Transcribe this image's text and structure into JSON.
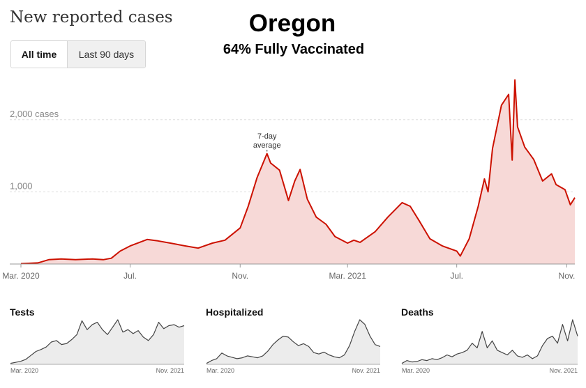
{
  "header": {
    "title": "New reported cases",
    "toggle": {
      "all_time": "All time",
      "last_90": "Last 90 days"
    }
  },
  "overlay": {
    "state": "Oregon",
    "vaccination": "64% Fully Vaccinated"
  },
  "colors": {
    "line": "#cc1100",
    "fill": "#f7d9d7",
    "grid": "#dddddd",
    "mini_line": "#444444",
    "mini_fill": "#ececec"
  },
  "chart_data": [
    {
      "type": "area",
      "title": "New reported cases",
      "annotation": "7-day average",
      "ylim": [
        0,
        2500
      ],
      "y_ticks": [
        {
          "value": 1000,
          "label": "1,000"
        },
        {
          "value": 2000,
          "label": "2,000 cases"
        }
      ],
      "x_ticks": [
        {
          "x": "2020-03-01",
          "label": "Mar. 2020"
        },
        {
          "x": "2020-07-01",
          "label": "Jul."
        },
        {
          "x": "2020-11-01",
          "label": "Nov."
        },
        {
          "x": "2021-03-01",
          "label": "Mar. 2021"
        },
        {
          "x": "2021-07-01",
          "label": "Jul."
        },
        {
          "x": "2021-11-01",
          "label": "Nov."
        }
      ],
      "series": [
        {
          "points": [
            [
              "2020-03-01",
              5
            ],
            [
              "2020-03-20",
              15
            ],
            [
              "2020-04-01",
              60
            ],
            [
              "2020-04-15",
              70
            ],
            [
              "2020-05-01",
              60
            ],
            [
              "2020-05-20",
              70
            ],
            [
              "2020-06-01",
              60
            ],
            [
              "2020-06-10",
              80
            ],
            [
              "2020-06-20",
              180
            ],
            [
              "2020-07-01",
              250
            ],
            [
              "2020-07-20",
              340
            ],
            [
              "2020-08-01",
              320
            ],
            [
              "2020-08-15",
              290
            ],
            [
              "2020-09-01",
              250
            ],
            [
              "2020-09-15",
              220
            ],
            [
              "2020-10-01",
              290
            ],
            [
              "2020-10-15",
              330
            ],
            [
              "2020-11-01",
              500
            ],
            [
              "2020-11-10",
              800
            ],
            [
              "2020-11-20",
              1200
            ],
            [
              "2020-12-01",
              1530
            ],
            [
              "2020-12-05",
              1400
            ],
            [
              "2020-12-15",
              1300
            ],
            [
              "2020-12-25",
              880
            ],
            [
              "2021-01-01",
              1150
            ],
            [
              "2021-01-07",
              1310
            ],
            [
              "2021-01-15",
              900
            ],
            [
              "2021-01-25",
              650
            ],
            [
              "2021-02-05",
              550
            ],
            [
              "2021-02-15",
              380
            ],
            [
              "2021-03-01",
              290
            ],
            [
              "2021-03-08",
              330
            ],
            [
              "2021-03-15",
              300
            ],
            [
              "2021-04-01",
              450
            ],
            [
              "2021-04-15",
              650
            ],
            [
              "2021-05-01",
              850
            ],
            [
              "2021-05-10",
              800
            ],
            [
              "2021-05-20",
              600
            ],
            [
              "2021-06-01",
              350
            ],
            [
              "2021-06-15",
              250
            ],
            [
              "2021-07-01",
              180
            ],
            [
              "2021-07-05",
              110
            ],
            [
              "2021-07-15",
              350
            ],
            [
              "2021-07-25",
              800
            ],
            [
              "2021-08-01",
              1180
            ],
            [
              "2021-08-05",
              1000
            ],
            [
              "2021-08-10",
              1600
            ],
            [
              "2021-08-20",
              2200
            ],
            [
              "2021-08-28",
              2350
            ],
            [
              "2021-09-01",
              1440
            ],
            [
              "2021-09-04",
              2550
            ],
            [
              "2021-09-07",
              1900
            ],
            [
              "2021-09-15",
              1620
            ],
            [
              "2021-09-25",
              1450
            ],
            [
              "2021-10-05",
              1150
            ],
            [
              "2021-10-15",
              1250
            ],
            [
              "2021-10-20",
              1100
            ],
            [
              "2021-10-30",
              1030
            ],
            [
              "2021-11-05",
              820
            ],
            [
              "2021-11-10",
              920
            ]
          ]
        }
      ]
    },
    {
      "type": "area",
      "title": "Tests",
      "x_ticks": [
        "Mar. 2020",
        "Nov. 2021"
      ],
      "series": [
        {
          "values": [
            2,
            4,
            6,
            10,
            18,
            26,
            30,
            35,
            45,
            48,
            40,
            42,
            50,
            60,
            88,
            70,
            80,
            85,
            70,
            60,
            75,
            90,
            65,
            70,
            62,
            68,
            55,
            48,
            60,
            85,
            72,
            78,
            80,
            75,
            78
          ]
        }
      ]
    },
    {
      "type": "area",
      "title": "Hospitalized",
      "x_ticks": [
        "Mar. 2020",
        "Nov. 2021"
      ],
      "series": [
        {
          "values": [
            2,
            8,
            12,
            24,
            18,
            15,
            12,
            14,
            18,
            16,
            14,
            18,
            28,
            42,
            52,
            60,
            58,
            48,
            40,
            44,
            38,
            25,
            22,
            26,
            20,
            16,
            14,
            20,
            40,
            70,
            95,
            85,
            60,
            42,
            38
          ]
        }
      ]
    },
    {
      "type": "area",
      "title": "Deaths",
      "x_ticks": [
        "Mar. 2020",
        "Nov. 2021"
      ],
      "series": [
        {
          "values": [
            2,
            8,
            5,
            6,
            10,
            8,
            12,
            10,
            14,
            20,
            16,
            22,
            25,
            30,
            45,
            35,
            70,
            35,
            50,
            30,
            25,
            20,
            30,
            18,
            15,
            20,
            12,
            18,
            40,
            55,
            60,
            45,
            85,
            50,
            95,
            60
          ]
        }
      ]
    }
  ]
}
